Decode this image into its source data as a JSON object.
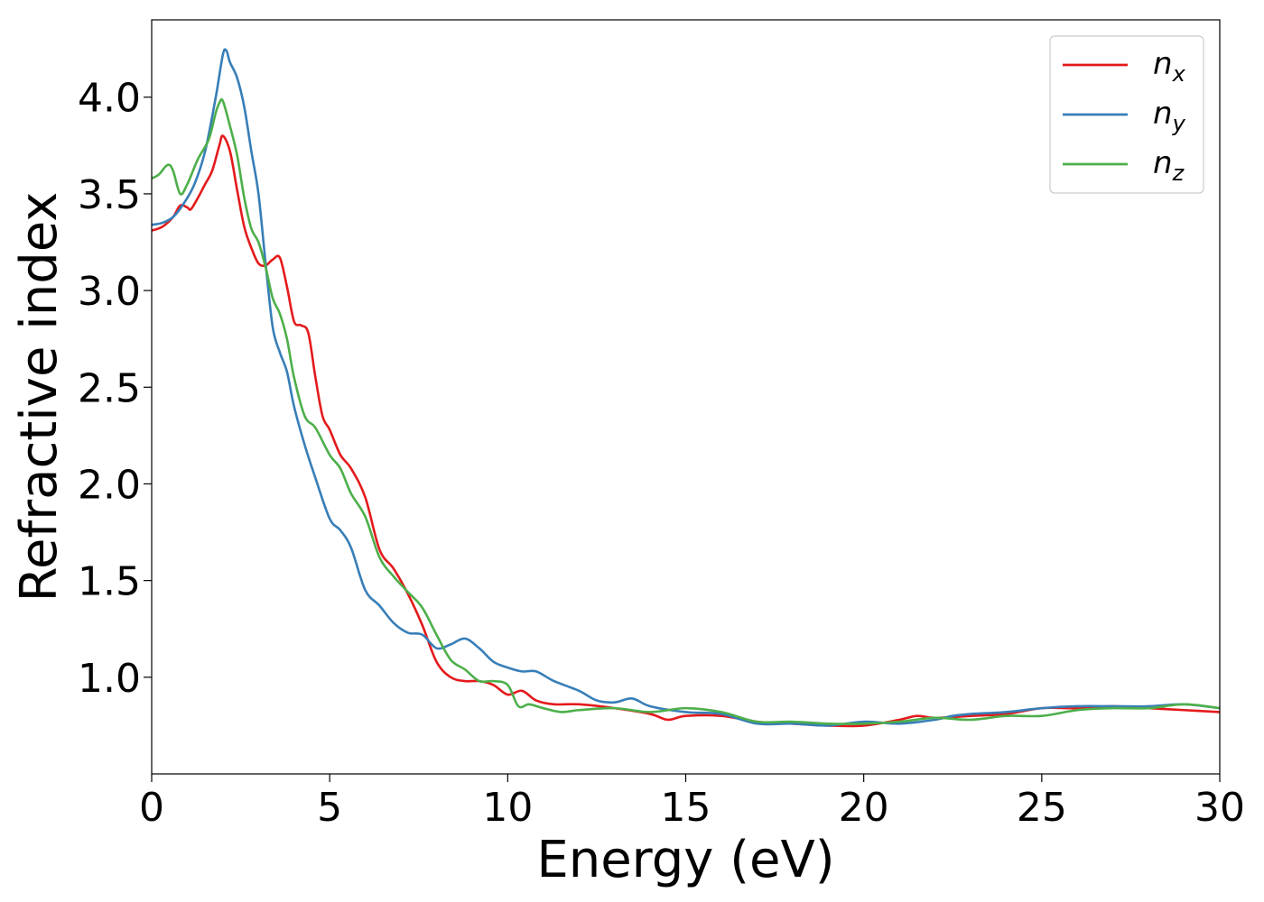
{
  "chart_data": {
    "type": "line",
    "title": "",
    "xlabel": "Energy (eV)",
    "ylabel": "Refractive index",
    "xlim": [
      0,
      30
    ],
    "ylim": [
      0.5,
      4.4
    ],
    "xticks": [
      0,
      5,
      10,
      15,
      20,
      25,
      30
    ],
    "xtick_labels": [
      "0",
      "5",
      "10",
      "15",
      "20",
      "25",
      "30"
    ],
    "yticks": [
      1.0,
      1.5,
      2.0,
      2.5,
      3.0,
      3.5,
      4.0
    ],
    "ytick_labels": [
      "1.0",
      "1.5",
      "2.0",
      "2.5",
      "3.0",
      "3.5",
      "4.0"
    ],
    "grid": false,
    "legend_position": "top-right",
    "series": [
      {
        "name": "n",
        "subscript": "x",
        "color": "#e41a1c",
        "x": [
          0,
          0.3,
          0.6,
          0.8,
          1.0,
          1.1,
          1.3,
          1.5,
          1.7,
          1.9,
          2.0,
          2.2,
          2.4,
          2.6,
          2.8,
          3.0,
          3.2,
          3.4,
          3.6,
          3.8,
          4.0,
          4.2,
          4.4,
          4.6,
          4.8,
          5.0,
          5.3,
          5.6,
          6.0,
          6.4,
          6.8,
          7.2,
          7.6,
          8.0,
          8.4,
          8.8,
          9.2,
          9.6,
          10.0,
          10.4,
          10.8,
          11.3,
          12.0,
          13.0,
          14.0,
          14.5,
          15.0,
          16.0,
          17.0,
          18.0,
          19.0,
          20.0,
          21.0,
          21.5,
          22.0,
          23.0,
          24.0,
          25.0,
          26.0,
          27.0,
          28.0,
          29.0,
          30.0
        ],
        "y": [
          3.31,
          3.33,
          3.38,
          3.44,
          3.43,
          3.42,
          3.48,
          3.55,
          3.62,
          3.75,
          3.8,
          3.72,
          3.52,
          3.33,
          3.22,
          3.14,
          3.13,
          3.16,
          3.17,
          3.02,
          2.84,
          2.82,
          2.78,
          2.55,
          2.35,
          2.28,
          2.15,
          2.08,
          1.93,
          1.66,
          1.56,
          1.43,
          1.27,
          1.08,
          1.0,
          0.98,
          0.98,
          0.96,
          0.91,
          0.93,
          0.88,
          0.86,
          0.86,
          0.84,
          0.81,
          0.78,
          0.8,
          0.8,
          0.77,
          0.76,
          0.75,
          0.75,
          0.78,
          0.8,
          0.79,
          0.8,
          0.81,
          0.84,
          0.84,
          0.85,
          0.84,
          0.83,
          0.82
        ]
      },
      {
        "name": "n",
        "subscript": "y",
        "color": "#377eb8",
        "x": [
          0,
          0.3,
          0.6,
          0.9,
          1.2,
          1.5,
          1.8,
          2.0,
          2.1,
          2.2,
          2.4,
          2.6,
          2.8,
          3.0,
          3.2,
          3.4,
          3.6,
          3.8,
          4.0,
          4.3,
          4.6,
          5.0,
          5.3,
          5.6,
          6.0,
          6.4,
          6.8,
          7.2,
          7.6,
          8.0,
          8.4,
          8.8,
          9.2,
          9.6,
          10.0,
          10.4,
          10.8,
          11.3,
          12.0,
          12.5,
          13.0,
          13.5,
          14.0,
          15.0,
          16.0,
          17.0,
          18.0,
          19.0,
          20.0,
          21.0,
          22.0,
          22.5,
          23.0,
          24.0,
          25.0,
          26.0,
          27.0,
          28.0,
          29.0,
          30.0
        ],
        "y": [
          3.34,
          3.35,
          3.38,
          3.45,
          3.55,
          3.72,
          4.0,
          4.22,
          4.24,
          4.18,
          4.1,
          3.95,
          3.72,
          3.5,
          3.14,
          2.81,
          2.68,
          2.58,
          2.4,
          2.2,
          2.03,
          1.82,
          1.76,
          1.67,
          1.45,
          1.37,
          1.28,
          1.23,
          1.22,
          1.15,
          1.17,
          1.2,
          1.15,
          1.08,
          1.05,
          1.03,
          1.03,
          0.98,
          0.93,
          0.88,
          0.87,
          0.89,
          0.85,
          0.82,
          0.81,
          0.76,
          0.76,
          0.75,
          0.77,
          0.76,
          0.78,
          0.8,
          0.81,
          0.82,
          0.84,
          0.85,
          0.85,
          0.85,
          0.86,
          0.84
        ]
      },
      {
        "name": "n",
        "subscript": "z",
        "color": "#4daf4a",
        "x": [
          0,
          0.2,
          0.45,
          0.6,
          0.8,
          1.0,
          1.3,
          1.6,
          1.8,
          1.9,
          2.0,
          2.2,
          2.4,
          2.6,
          2.8,
          3.0,
          3.2,
          3.4,
          3.6,
          3.8,
          4.0,
          4.3,
          4.6,
          5.0,
          5.3,
          5.6,
          6.0,
          6.4,
          6.8,
          7.2,
          7.6,
          8.0,
          8.4,
          8.8,
          9.2,
          9.6,
          10.0,
          10.3,
          10.6,
          11.0,
          11.5,
          12.0,
          13.0,
          14.0,
          15.0,
          16.0,
          17.0,
          18.0,
          19.0,
          20.0,
          21.0,
          22.0,
          23.0,
          24.0,
          25.0,
          26.0,
          27.0,
          28.0,
          29.0,
          30.0
        ],
        "y": [
          3.58,
          3.6,
          3.65,
          3.62,
          3.5,
          3.55,
          3.68,
          3.78,
          3.92,
          3.97,
          3.98,
          3.85,
          3.7,
          3.48,
          3.32,
          3.25,
          3.12,
          2.96,
          2.88,
          2.75,
          2.55,
          2.35,
          2.29,
          2.15,
          2.08,
          1.95,
          1.83,
          1.62,
          1.52,
          1.44,
          1.36,
          1.22,
          1.09,
          1.04,
          0.98,
          0.98,
          0.96,
          0.85,
          0.86,
          0.84,
          0.82,
          0.83,
          0.84,
          0.82,
          0.84,
          0.82,
          0.77,
          0.77,
          0.76,
          0.76,
          0.77,
          0.79,
          0.78,
          0.8,
          0.8,
          0.83,
          0.84,
          0.84,
          0.86,
          0.84
        ]
      }
    ]
  }
}
